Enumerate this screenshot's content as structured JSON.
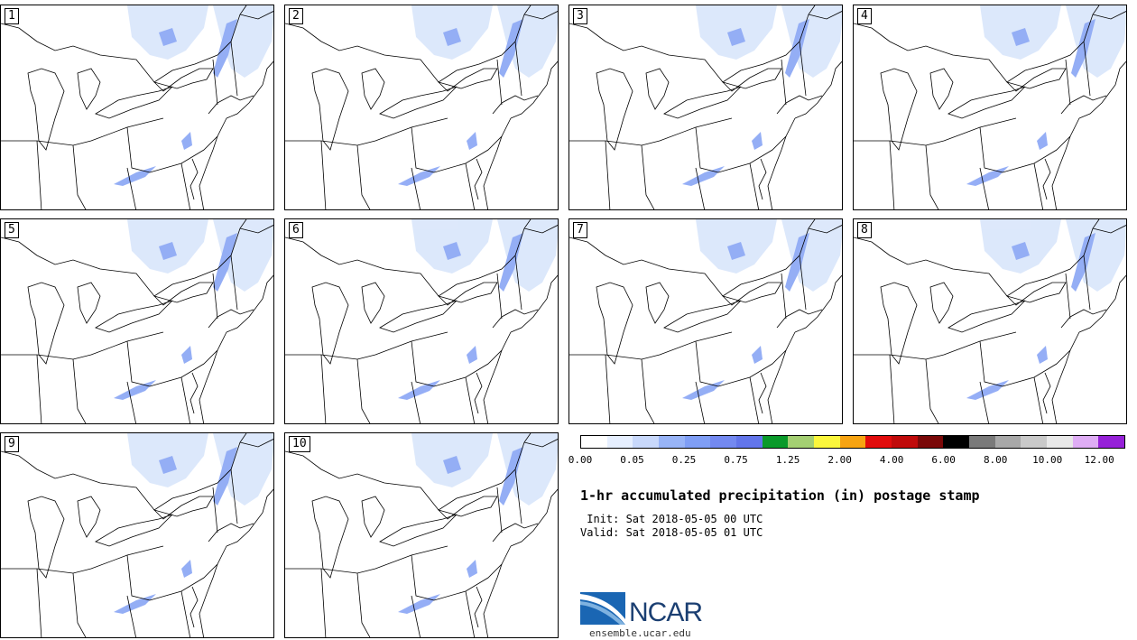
{
  "panels": [
    {
      "label": "1"
    },
    {
      "label": "2"
    },
    {
      "label": "3"
    },
    {
      "label": "4"
    },
    {
      "label": "5"
    },
    {
      "label": "6"
    },
    {
      "label": "7"
    },
    {
      "label": "8"
    },
    {
      "label": "9"
    },
    {
      "label": "10"
    }
  ],
  "colorbar": {
    "colors": [
      "#ffffff",
      "#e6efff",
      "#c8d8fb",
      "#98b4f7",
      "#7f9ef5",
      "#7389f1",
      "#6275ea",
      "#0a9a2a",
      "#a4cf72",
      "#fbf63c",
      "#f7a412",
      "#e20c0c",
      "#c00a0a",
      "#7a0808",
      "#000000",
      "#7a7a7a",
      "#a8a8a8",
      "#c9c9c9",
      "#e8e8e8",
      "#dfadf5",
      "#9621d8"
    ],
    "tick_labels": [
      "0.00",
      "0.05",
      "0.25",
      "0.75",
      "1.25",
      "2.00",
      "4.00",
      "6.00",
      "8.00",
      "10.00",
      "12.00"
    ]
  },
  "title": "1-hr accumulated precipitation (in) postage stamp",
  "init": " Init: Sat 2018-05-05 00 UTC",
  "valid": "Valid: Sat 2018-05-05 01 UTC",
  "logo": {
    "text": "NCAR",
    "url_text": "ensemble.ucar.edu"
  },
  "map": {
    "coastline_color": "#000000",
    "precip_light": "#dbe7fb",
    "precip_mid": "#8faaf5"
  }
}
